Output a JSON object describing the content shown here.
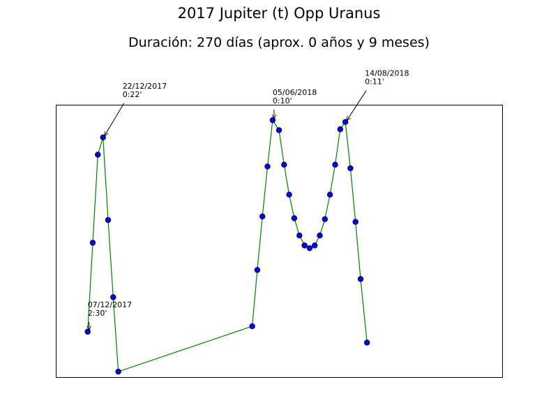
{
  "chart_data": {
    "type": "line",
    "title": "2017 Jupiter (t) Opp Uranus",
    "subtitle": "Duración: 270 días (aprox. 0 años y 9 meses)",
    "xlabel": "",
    "ylabel": "",
    "grid": false,
    "axes_ticks_visible": false,
    "xlim": [
      0,
      70
    ],
    "ylim": [
      0,
      3
    ],
    "line_color": "#008000",
    "marker_color": "#0000ff",
    "series": [
      {
        "points": [
          [
            5,
            0.5
          ],
          [
            5.8,
            1.48
          ],
          [
            6.6,
            2.45
          ],
          [
            7.4,
            2.64
          ],
          [
            8.2,
            1.73
          ],
          [
            9,
            0.88
          ],
          [
            9.8,
            0.06
          ],
          [
            30.8,
            0.56
          ],
          [
            31.6,
            1.18
          ],
          [
            32.4,
            1.77
          ],
          [
            33.2,
            2.32
          ],
          [
            34,
            2.83
          ],
          [
            35,
            2.72
          ],
          [
            35.8,
            2.34
          ],
          [
            36.6,
            2.01
          ],
          [
            37.4,
            1.75
          ],
          [
            38.2,
            1.56
          ],
          [
            39,
            1.45
          ],
          [
            39.8,
            1.42
          ],
          [
            40.6,
            1.45
          ],
          [
            41.4,
            1.56
          ],
          [
            42.2,
            1.74
          ],
          [
            43,
            2.01
          ],
          [
            43.8,
            2.34
          ],
          [
            44.6,
            2.73
          ],
          [
            45.4,
            2.81
          ],
          [
            46.2,
            2.3
          ],
          [
            47,
            1.71
          ],
          [
            47.8,
            1.08
          ],
          [
            48.8,
            0.38
          ]
        ]
      }
    ],
    "annotations": [
      {
        "date": "07/12/2017",
        "value": "2:30'",
        "point_index": 0
      },
      {
        "date": "22/12/2017",
        "value": "0:22'",
        "point_index": 3
      },
      {
        "date": "05/06/2018",
        "value": "0:10'",
        "point_index": 11
      },
      {
        "date": "14/08/2018",
        "value": "0:11'",
        "point_index": 25
      }
    ]
  }
}
